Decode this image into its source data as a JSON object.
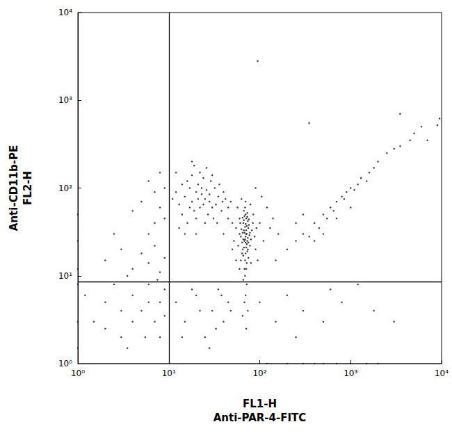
{
  "chart_data": {
    "type": "scatter",
    "xlabel": "FL1-H\nAnti-PAR-4-FITC",
    "ylabel": "Anti-CD11b-PE\nFL2-H",
    "log": true,
    "grid": false,
    "xlim": [
      1,
      10000
    ],
    "ylim": [
      1,
      10000
    ],
    "xticks": [
      {
        "value": 1,
        "label": "10⁰"
      },
      {
        "value": 10,
        "label": "10¹"
      },
      {
        "value": 100,
        "label": "10²"
      },
      {
        "value": 1000,
        "label": "10³"
      },
      {
        "value": 10000,
        "label": "10⁴"
      }
    ],
    "yticks": [
      {
        "value": 1,
        "label": "10⁰"
      },
      {
        "value": 10,
        "label": "10¹"
      },
      {
        "value": 100,
        "label": "10²"
      },
      {
        "value": 1000,
        "label": "10³"
      },
      {
        "value": 10000,
        "label": "10⁴"
      }
    ],
    "gates": {
      "x": 10,
      "y": 8.5
    },
    "series": [
      {
        "color": "#000000",
        "marker": "circle",
        "values": [
          [
            68,
            25
          ],
          [
            72,
            30
          ],
          [
            65,
            20
          ],
          [
            75,
            35
          ],
          [
            70,
            18
          ],
          [
            62,
            28
          ],
          [
            78,
            22
          ],
          [
            66,
            40
          ],
          [
            71,
            45
          ],
          [
            69,
            15
          ],
          [
            74,
            27
          ],
          [
            67,
            33
          ],
          [
            73,
            19
          ],
          [
            64,
            24
          ],
          [
            76,
            38
          ],
          [
            70,
            50
          ],
          [
            68,
            12
          ],
          [
            72,
            23
          ],
          [
            60,
            30
          ],
          [
            80,
            26
          ],
          [
            66,
            17
          ],
          [
            74,
            42
          ],
          [
            69,
            36
          ],
          [
            71,
            21
          ],
          [
            63,
            34
          ],
          [
            77,
            29
          ],
          [
            65,
            46
          ],
          [
            70,
            28
          ],
          [
            72,
            14
          ],
          [
            67,
            55
          ],
          [
            58,
            22
          ],
          [
            82,
            33
          ],
          [
            69,
            10
          ],
          [
            75,
            16
          ],
          [
            61,
            40
          ],
          [
            73,
            52
          ],
          [
            68,
            31
          ],
          [
            70,
            24
          ],
          [
            66,
            26
          ],
          [
            74,
            20
          ],
          [
            71,
            33
          ],
          [
            64,
            18
          ],
          [
            76,
            44
          ],
          [
            69,
            60
          ],
          [
            72,
            37
          ],
          [
            67,
            21
          ],
          [
            78,
            31
          ],
          [
            62,
            15
          ],
          [
            70,
            39
          ],
          [
            73,
            25
          ],
          [
            65,
            31
          ],
          [
            71,
            12
          ],
          [
            68,
            48
          ],
          [
            75,
            24
          ],
          [
            60,
            45
          ],
          [
            84,
            40
          ],
          [
            55,
            35
          ],
          [
            88,
            28
          ],
          [
            66,
            9
          ],
          [
            72,
            8
          ],
          [
            70,
            6
          ],
          [
            68,
            5
          ],
          [
            74,
            4
          ],
          [
            65,
            3.5
          ],
          [
            71,
            2.5
          ],
          [
            90,
            20
          ],
          [
            52,
            25
          ],
          [
            85,
            50
          ],
          [
            57,
            60
          ],
          [
            79,
            65
          ],
          [
            70,
            70
          ],
          [
            63,
            75
          ],
          [
            60,
            12
          ],
          [
            80,
            14
          ],
          [
            92,
            35
          ],
          [
            50,
            40
          ],
          [
            67,
            43
          ],
          [
            73,
            47
          ],
          [
            69,
            26
          ],
          [
            71,
            30
          ],
          [
            15,
            80
          ],
          [
            18,
            70
          ],
          [
            20,
            90
          ],
          [
            22,
            60
          ],
          [
            25,
            75
          ],
          [
            17,
            100
          ],
          [
            13,
            65
          ],
          [
            19,
            55
          ],
          [
            23,
            85
          ],
          [
            28,
            70
          ],
          [
            16,
            120
          ],
          [
            21,
            110
          ],
          [
            14,
            50
          ],
          [
            26,
            95
          ],
          [
            30,
            60
          ],
          [
            12,
            90
          ],
          [
            18,
            140
          ],
          [
            24,
            130
          ],
          [
            35,
            80
          ],
          [
            20,
            45
          ],
          [
            27,
            50
          ],
          [
            32,
            100
          ],
          [
            16,
            40
          ],
          [
            22,
            150
          ],
          [
            11,
            75
          ],
          [
            19,
            180
          ],
          [
            29,
            120
          ],
          [
            33,
            65
          ],
          [
            38,
            55
          ],
          [
            40,
            90
          ],
          [
            14,
            110
          ],
          [
            25,
            40
          ],
          [
            17,
            60
          ],
          [
            21,
            75
          ],
          [
            23,
            100
          ],
          [
            13,
            35
          ],
          [
            12,
            150
          ],
          [
            18,
            200
          ],
          [
            26,
            170
          ],
          [
            30,
            140
          ],
          [
            36,
            110
          ],
          [
            42,
            75
          ],
          [
            45,
            60
          ],
          [
            15,
            30
          ],
          [
            20,
            30
          ],
          [
            24,
            65
          ],
          [
            28,
            85
          ],
          [
            31,
            45
          ],
          [
            34,
            40
          ],
          [
            39,
            70
          ],
          [
            8,
            60
          ],
          [
            7,
            90
          ],
          [
            9,
            45
          ],
          [
            6,
            120
          ],
          [
            8,
            150
          ],
          [
            5,
            70
          ],
          [
            9,
            100
          ],
          [
            7,
            40
          ],
          [
            4,
            55
          ],
          [
            6,
            30
          ],
          [
            150,
            15
          ],
          [
            200,
            20
          ],
          [
            250,
            25
          ],
          [
            300,
            30
          ],
          [
            350,
            28
          ],
          [
            400,
            40
          ],
          [
            450,
            35
          ],
          [
            500,
            50
          ],
          [
            550,
            45
          ],
          [
            600,
            60
          ],
          [
            650,
            55
          ],
          [
            700,
            70
          ],
          [
            800,
            80
          ],
          [
            850,
            75
          ],
          [
            900,
            90
          ],
          [
            1000,
            100
          ],
          [
            1100,
            95
          ],
          [
            1200,
            110
          ],
          [
            1300,
            130
          ],
          [
            1500,
            120
          ],
          [
            1600,
            150
          ],
          [
            1800,
            170
          ],
          [
            2000,
            200
          ],
          [
            2500,
            250
          ],
          [
            3000,
            280
          ],
          [
            3500,
            300
          ],
          [
            4500,
            350
          ],
          [
            5000,
            420
          ],
          [
            6000,
            500
          ],
          [
            7000,
            350
          ],
          [
            9500,
            620
          ],
          [
            9000,
            520
          ],
          [
            400,
            25
          ],
          [
            500,
            30
          ],
          [
            700,
            45
          ],
          [
            1000,
            60
          ],
          [
            250,
            40
          ],
          [
            300,
            50
          ],
          [
            1.5,
            3
          ],
          [
            2,
            5
          ],
          [
            3,
            2
          ],
          [
            4,
            6
          ],
          [
            5,
            4
          ],
          [
            6,
            8
          ],
          [
            7,
            3
          ],
          [
            8,
            5
          ],
          [
            9,
            7
          ],
          [
            2.5,
            8
          ],
          [
            3.5,
            1.5
          ],
          [
            5.5,
            2
          ],
          [
            1.2,
            6
          ],
          [
            2,
            2.5
          ],
          [
            7.5,
            9
          ],
          [
            4,
            3
          ],
          [
            6,
            5
          ],
          [
            3,
            4
          ],
          [
            8,
            2
          ],
          [
            9,
            3.5
          ],
          [
            1,
            1.5
          ],
          [
            1,
            3
          ],
          [
            1,
            8
          ],
          [
            1,
            12
          ],
          [
            1,
            25
          ],
          [
            1,
            50
          ],
          [
            2,
            15
          ],
          [
            3,
            20
          ],
          [
            4,
            12
          ],
          [
            5,
            18
          ],
          [
            6,
            14
          ],
          [
            7,
            22
          ],
          [
            8,
            11
          ],
          [
            9,
            16
          ],
          [
            2.5,
            30
          ],
          [
            3.5,
            10
          ],
          [
            12,
            5
          ],
          [
            15,
            3
          ],
          [
            20,
            6
          ],
          [
            25,
            2
          ],
          [
            30,
            4
          ],
          [
            35,
            7
          ],
          [
            40,
            3
          ],
          [
            45,
            5
          ],
          [
            18,
            7
          ],
          [
            22,
            4
          ],
          [
            28,
            1.5
          ],
          [
            14,
            2
          ],
          [
            33,
            2.5
          ],
          [
            38,
            6
          ],
          [
            48,
            4
          ],
          [
            100,
            5
          ],
          [
            150,
            3
          ],
          [
            200,
            6
          ],
          [
            300,
            4
          ],
          [
            120,
            1
          ],
          [
            200,
            1
          ],
          [
            300,
            1
          ],
          [
            400,
            1
          ],
          [
            500,
            1
          ],
          [
            700,
            1
          ],
          [
            1000,
            1
          ],
          [
            1500,
            1
          ],
          [
            2000,
            1
          ],
          [
            250,
            2
          ],
          [
            500,
            3
          ],
          [
            800,
            5
          ],
          [
            1200,
            8
          ],
          [
            1800,
            4
          ],
          [
            3000,
            3
          ],
          [
            600,
            7
          ],
          [
            40,
            30
          ],
          [
            45,
            45
          ],
          [
            50,
            20
          ],
          [
            48,
            70
          ],
          [
            55,
            15
          ],
          [
            100,
            40
          ],
          [
            110,
            25
          ],
          [
            120,
            60
          ],
          [
            130,
            35
          ],
          [
            95,
            15
          ],
          [
            105,
            80
          ],
          [
            140,
            45
          ],
          [
            160,
            30
          ],
          [
            90,
            100
          ],
          [
            95,
            2800
          ],
          [
            350,
            550
          ],
          [
            3500,
            700
          ]
        ]
      }
    ]
  }
}
